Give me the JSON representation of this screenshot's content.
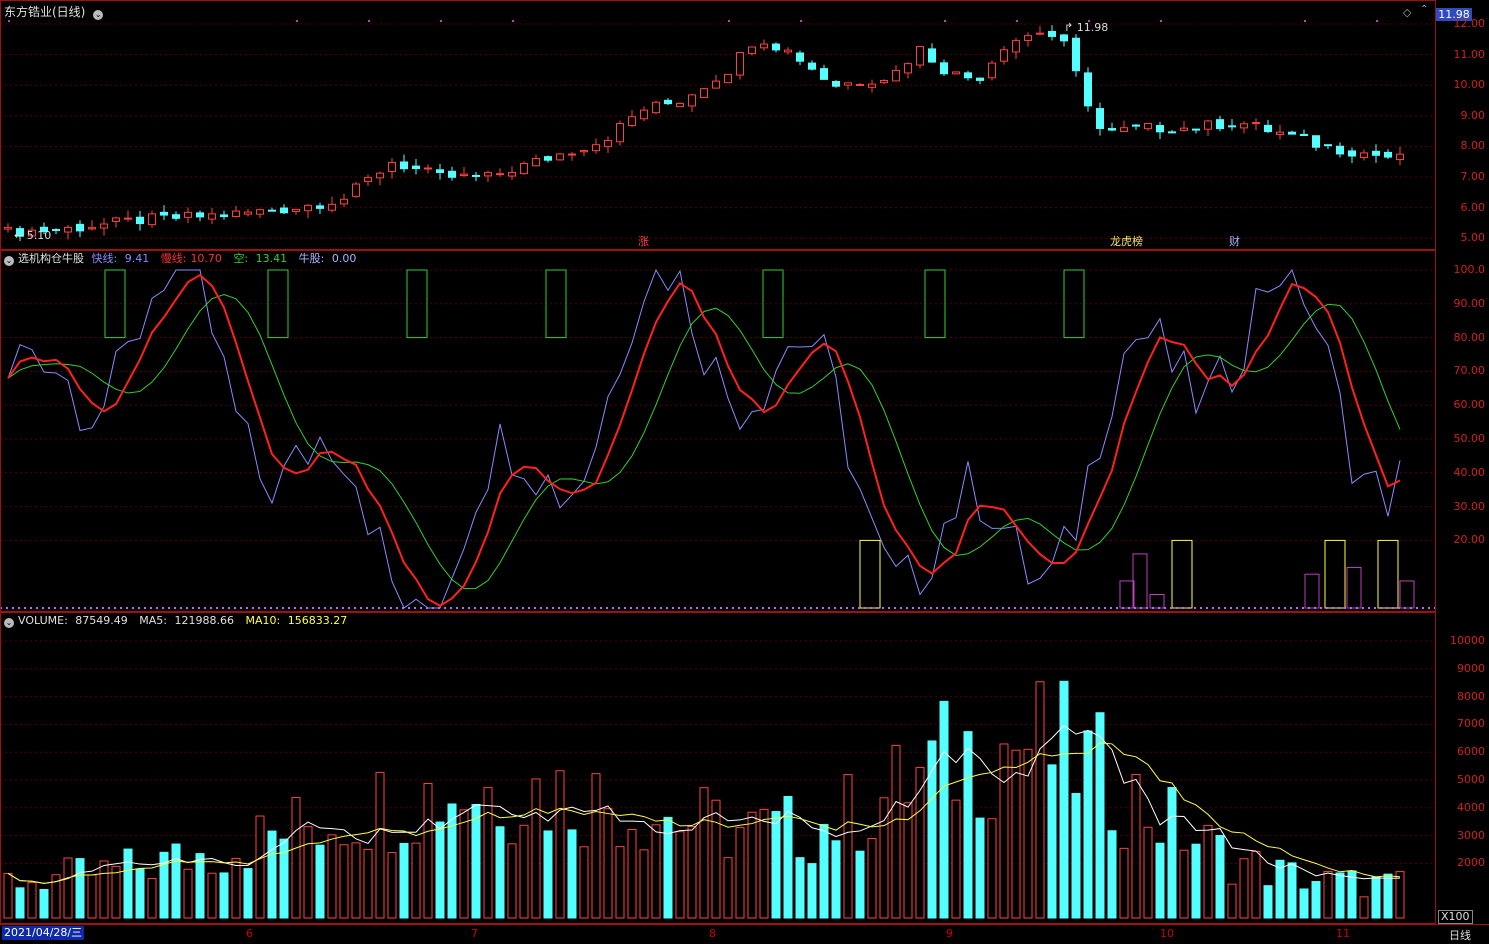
{
  "title": "东方锆业(日线)",
  "current_price": "11.98",
  "price_panel": {
    "axis": [
      "12.00",
      "11.00",
      "10.00",
      "9.00",
      "8.00",
      "7.00",
      "6.00",
      "5.00"
    ],
    "high_label": "11.98",
    "low_label": "5.10",
    "events": [
      {
        "text": "涨",
        "color": "#ff4444"
      },
      {
        "text": "龙虎榜",
        "color": "#ffe066"
      },
      {
        "text": "财",
        "color": "#aab4ff"
      }
    ]
  },
  "indicator_panel": {
    "name": "选机构仓牛股",
    "fast_label": "快线:",
    "fast_value": "9.41",
    "slow_label": "慢线:",
    "slow_value": "10.70",
    "empty_label": "空:",
    "empty_value": "13.41",
    "bull_label": "牛股:",
    "bull_value": "0.00",
    "axis": [
      "100.0",
      "90.00",
      "80.00",
      "70.00",
      "60.00",
      "50.00",
      "40.00",
      "30.00",
      "20.00"
    ]
  },
  "volume_panel": {
    "name": "VOLUME:",
    "volume_value": "87549.49",
    "ma5_label": "MA5:",
    "ma5_value": "121988.66",
    "ma10_label": "MA10:",
    "ma10_value": "156833.27",
    "axis": [
      "10000",
      "9000",
      "8000",
      "7000",
      "6000",
      "5000",
      "4000",
      "3000",
      "2000"
    ],
    "unit": "X100"
  },
  "time_axis": {
    "current_date": "2021/04/28/三",
    "months": [
      "6",
      "7",
      "8",
      "9",
      "10",
      "11"
    ],
    "period": "日线"
  },
  "colors": {
    "up": "#ff4040",
    "down": "#54ffff",
    "ma5": "#ffffff",
    "ma10": "#ffff40",
    "fast": "#8a8aff",
    "slow": "#ff2020",
    "empty": "#30d030"
  }
}
